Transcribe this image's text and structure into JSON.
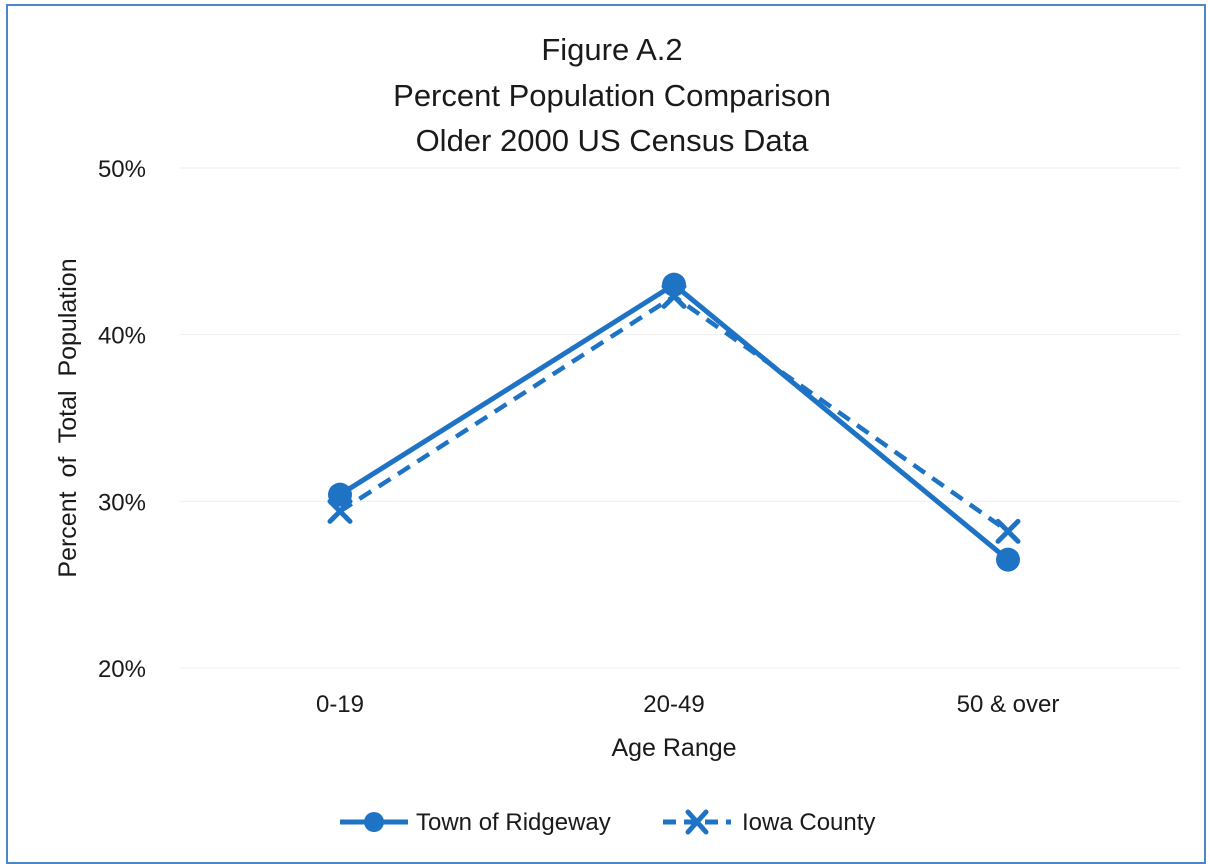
{
  "chart_data": {
    "type": "line",
    "title": [
      "Figure A.2",
      "Percent Population Comparison",
      "Older 2000 US Census Data"
    ],
    "xlabel": "Age Range",
    "ylabel": "Percent  of  Total  Population",
    "categories": [
      "0-19",
      "20-49",
      "50 & over"
    ],
    "ylim": [
      20,
      50
    ],
    "yticks": [
      20,
      30,
      40,
      50
    ],
    "ytick_labels": [
      "20%",
      "30%",
      "40%",
      "50%"
    ],
    "grid": "horizontal",
    "legend_position": "bottom",
    "series": [
      {
        "name": "Town of Ridgeway",
        "values": [
          30.4,
          43.0,
          26.5
        ],
        "marker": "circle",
        "style": "solid",
        "color": "#1f73c4"
      },
      {
        "name": "Iowa County",
        "values": [
          29.4,
          42.3,
          28.2
        ],
        "marker": "x",
        "style": "dashed",
        "color": "#1f73c4"
      }
    ]
  }
}
